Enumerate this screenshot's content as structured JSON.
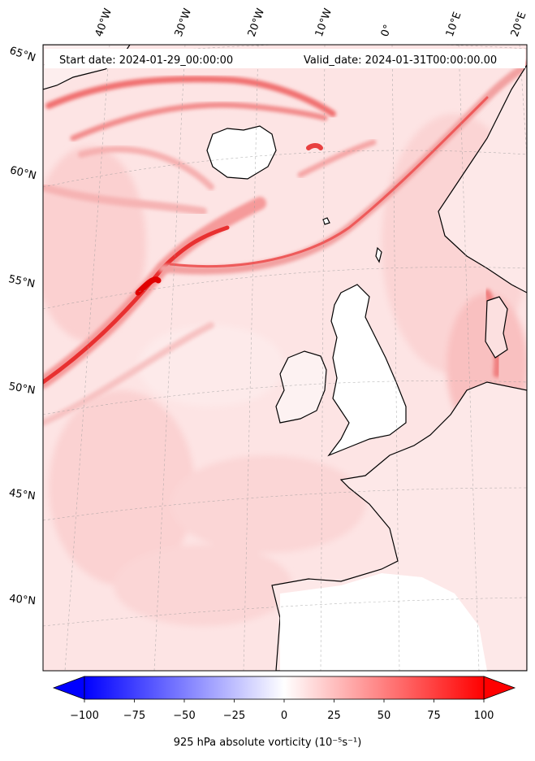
{
  "map": {
    "start_date": "Start date: 2024-01-29_00:00:00",
    "valid_date": "Valid_date: 2024-01-31T00:00:00.00",
    "lat_labels": [
      "65°N",
      "60°N",
      "55°N",
      "50°N",
      "45°N",
      "40°N"
    ],
    "lon_labels": [
      "40°W",
      "30°W",
      "20°W",
      "10°W",
      "0°",
      "10°E",
      "20°E"
    ]
  },
  "colorbar": {
    "ticks": [
      "−100",
      "−75",
      "−50",
      "−25",
      "0",
      "25",
      "50",
      "75",
      "100"
    ],
    "label": "925 hPa absolute vorticity (10⁻⁵s⁻¹)",
    "min": -100,
    "max": 100,
    "colormap": "bwr",
    "negative_color": "#0000ff",
    "positive_color": "#ff0000"
  }
}
